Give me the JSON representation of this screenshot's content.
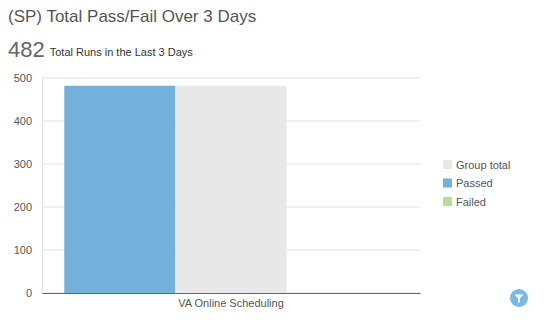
{
  "chart_data": {
    "type": "bar",
    "title": "(SP) Total Pass/Fail Over 3 Days",
    "total": 482,
    "subtitle": "Total Runs in the Last 3 Days",
    "categories": [
      "VA Online Scheduling"
    ],
    "series": [
      {
        "name": "Group total",
        "color": "#e8e8e8",
        "values": [
          482
        ]
      },
      {
        "name": "Passed",
        "color": "#74b0d9",
        "values": [
          482
        ]
      },
      {
        "name": "Failed",
        "color": "#b5df98",
        "values": [
          0
        ]
      }
    ],
    "ylim": [
      0,
      500
    ],
    "yticks": [
      0,
      100,
      200,
      300,
      400,
      500
    ],
    "grid": true,
    "legend": "right"
  }
}
